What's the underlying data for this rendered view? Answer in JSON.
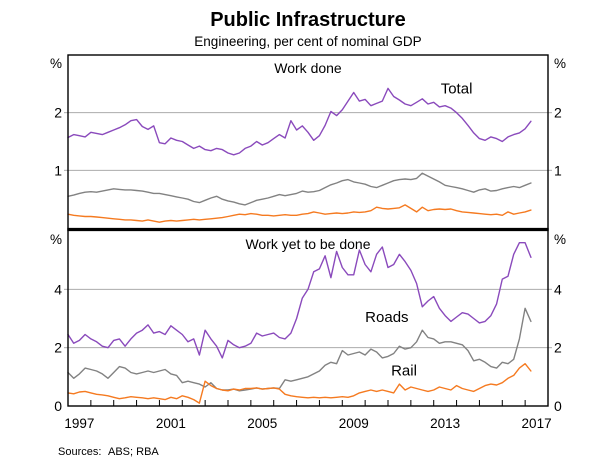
{
  "header": {
    "title": "Public Infrastructure",
    "subtitle": "Engineering, per cent of nominal GDP"
  },
  "footer": {
    "sources_label": "Sources:",
    "sources_value": "ABS; RBA"
  },
  "colors": {
    "total": "#8a4abc",
    "roads": "#828282",
    "rail": "#f57a20",
    "gridline": "#ababab",
    "axis": "#000000",
    "background": "#ffffff"
  },
  "chart_data": {
    "type": "line",
    "title": "Public Infrastructure",
    "subtitle": "Engineering, per cent of nominal GDP",
    "grid": true,
    "legend_position": "inline-annotations",
    "x": {
      "axis_range": [
        1997,
        2018
      ],
      "data_start": 1997.0,
      "data_step_years": 0.25,
      "tick_interval_years": 1,
      "tick_labels": [
        "1997",
        "2001",
        "2005",
        "2009",
        "2013",
        "2017"
      ],
      "tick_label_years": [
        1997,
        2001,
        2005,
        2009,
        2013,
        2017
      ]
    },
    "panels": [
      {
        "label": "Work done",
        "unit_left": "%",
        "unit_right": "%",
        "ylim": [
          0,
          3
        ],
        "gridlines": [
          1,
          2
        ],
        "ytick_labels": [
          {
            "value": 1,
            "text": "1"
          },
          {
            "value": 2,
            "text": "2"
          }
        ],
        "series": [
          {
            "name": "Total",
            "color": "#8a4abc",
            "values": [
              1.57,
              1.62,
              1.6,
              1.58,
              1.66,
              1.64,
              1.62,
              1.66,
              1.7,
              1.74,
              1.79,
              1.86,
              1.88,
              1.76,
              1.71,
              1.77,
              1.48,
              1.46,
              1.56,
              1.52,
              1.5,
              1.44,
              1.38,
              1.42,
              1.36,
              1.34,
              1.38,
              1.36,
              1.3,
              1.27,
              1.3,
              1.38,
              1.42,
              1.5,
              1.44,
              1.48,
              1.55,
              1.62,
              1.56,
              1.86,
              1.7,
              1.77,
              1.66,
              1.52,
              1.6,
              1.78,
              2.02,
              1.95,
              2.05,
              2.2,
              2.35,
              2.2,
              2.23,
              2.12,
              2.16,
              2.2,
              2.42,
              2.28,
              2.22,
              2.15,
              2.12,
              2.18,
              2.24,
              2.15,
              2.18,
              2.1,
              2.12,
              2.08,
              2.0,
              1.9,
              1.78,
              1.65,
              1.55,
              1.52,
              1.58,
              1.55,
              1.5,
              1.58,
              1.62,
              1.65,
              1.72,
              1.85
            ]
          },
          {
            "name": "Roads",
            "color": "#828282",
            "values": [
              0.55,
              0.57,
              0.6,
              0.62,
              0.63,
              0.62,
              0.64,
              0.66,
              0.68,
              0.67,
              0.66,
              0.66,
              0.65,
              0.64,
              0.62,
              0.6,
              0.6,
              0.58,
              0.56,
              0.54,
              0.52,
              0.5,
              0.46,
              0.44,
              0.48,
              0.52,
              0.55,
              0.5,
              0.47,
              0.45,
              0.42,
              0.4,
              0.44,
              0.48,
              0.5,
              0.52,
              0.55,
              0.58,
              0.56,
              0.58,
              0.6,
              0.64,
              0.62,
              0.63,
              0.65,
              0.7,
              0.75,
              0.78,
              0.82,
              0.84,
              0.8,
              0.78,
              0.76,
              0.72,
              0.7,
              0.74,
              0.78,
              0.82,
              0.84,
              0.85,
              0.84,
              0.86,
              0.95,
              0.9,
              0.85,
              0.8,
              0.74,
              0.72,
              0.7,
              0.68,
              0.65,
              0.62,
              0.66,
              0.68,
              0.64,
              0.65,
              0.68,
              0.7,
              0.72,
              0.7,
              0.74,
              0.78
            ]
          },
          {
            "name": "Rail",
            "color": "#f57a20",
            "values": [
              0.24,
              0.22,
              0.21,
              0.2,
              0.2,
              0.19,
              0.18,
              0.17,
              0.16,
              0.15,
              0.14,
              0.14,
              0.13,
              0.12,
              0.14,
              0.12,
              0.1,
              0.12,
              0.13,
              0.12,
              0.13,
              0.14,
              0.15,
              0.14,
              0.15,
              0.16,
              0.17,
              0.18,
              0.2,
              0.22,
              0.24,
              0.23,
              0.25,
              0.24,
              0.22,
              0.22,
              0.21,
              0.22,
              0.23,
              0.22,
              0.22,
              0.24,
              0.25,
              0.28,
              0.26,
              0.24,
              0.25,
              0.26,
              0.25,
              0.26,
              0.28,
              0.27,
              0.28,
              0.3,
              0.36,
              0.34,
              0.33,
              0.34,
              0.35,
              0.4,
              0.34,
              0.28,
              0.36,
              0.3,
              0.32,
              0.33,
              0.32,
              0.33,
              0.3,
              0.28,
              0.27,
              0.26,
              0.25,
              0.24,
              0.23,
              0.24,
              0.22,
              0.28,
              0.24,
              0.26,
              0.28,
              0.31
            ]
          }
        ],
        "annotations": [
          {
            "text": "Total",
            "color": "#8a4abc",
            "x_year": 2014.0,
            "y_value": 2.42
          }
        ]
      },
      {
        "label": "Work yet to be done",
        "unit_left": "%",
        "unit_right": "%",
        "ylim": [
          0,
          6
        ],
        "gridlines": [
          2,
          4
        ],
        "ytick_labels": [
          {
            "value": 0,
            "text": "0"
          },
          {
            "value": 2,
            "text": "2"
          },
          {
            "value": 4,
            "text": "4"
          }
        ],
        "series": [
          {
            "name": "Total",
            "color": "#8a4abc",
            "values": [
              2.45,
              2.15,
              2.25,
              2.45,
              2.3,
              2.2,
              2.05,
              2.0,
              2.25,
              2.3,
              2.05,
              2.3,
              2.5,
              2.6,
              2.78,
              2.5,
              2.55,
              2.45,
              2.75,
              2.6,
              2.45,
              2.2,
              2.3,
              1.75,
              2.6,
              2.3,
              2.05,
              1.65,
              2.25,
              2.1,
              2.0,
              2.05,
              2.15,
              2.5,
              2.4,
              2.45,
              2.5,
              2.35,
              2.3,
              2.5,
              3.0,
              3.7,
              4.0,
              4.6,
              4.7,
              5.15,
              4.4,
              5.3,
              4.75,
              4.5,
              4.5,
              5.35,
              4.85,
              4.6,
              5.2,
              5.45,
              4.75,
              4.85,
              5.2,
              4.95,
              4.65,
              4.2,
              3.4,
              3.6,
              3.75,
              3.35,
              3.1,
              2.9,
              3.05,
              3.2,
              3.15,
              3.0,
              2.85,
              2.9,
              3.1,
              3.5,
              4.35,
              4.45,
              5.2,
              5.6,
              5.6,
              5.1
            ]
          },
          {
            "name": "Roads",
            "color": "#828282",
            "values": [
              1.15,
              0.95,
              1.1,
              1.3,
              1.25,
              1.2,
              1.1,
              0.95,
              1.15,
              1.35,
              1.3,
              1.15,
              1.1,
              1.15,
              1.2,
              1.15,
              1.2,
              1.25,
              1.1,
              1.05,
              0.8,
              0.85,
              0.8,
              0.75,
              0.65,
              0.8,
              0.6,
              0.55,
              0.55,
              0.58,
              0.52,
              0.55,
              0.58,
              0.62,
              0.58,
              0.6,
              0.62,
              0.6,
              0.9,
              0.85,
              0.9,
              0.95,
              1.0,
              1.1,
              1.2,
              1.4,
              1.5,
              1.45,
              1.9,
              1.75,
              1.8,
              1.85,
              1.75,
              1.95,
              1.85,
              1.65,
              1.7,
              1.8,
              2.05,
              1.95,
              2.0,
              2.2,
              2.6,
              2.35,
              2.3,
              2.15,
              2.2,
              2.2,
              2.15,
              2.1,
              1.9,
              1.55,
              1.6,
              1.5,
              1.35,
              1.3,
              1.5,
              1.45,
              1.6,
              2.3,
              3.35,
              2.9
            ]
          },
          {
            "name": "Rail",
            "color": "#f57a20",
            "values": [
              0.45,
              0.42,
              0.48,
              0.5,
              0.45,
              0.4,
              0.38,
              0.35,
              0.3,
              0.25,
              0.28,
              0.32,
              0.3,
              0.28,
              0.25,
              0.28,
              0.25,
              0.22,
              0.3,
              0.25,
              0.35,
              0.3,
              0.22,
              0.1,
              0.85,
              0.7,
              0.6,
              0.55,
              0.52,
              0.58,
              0.55,
              0.6,
              0.6,
              0.62,
              0.58,
              0.6,
              0.62,
              0.58,
              0.4,
              0.35,
              0.32,
              0.3,
              0.28,
              0.3,
              0.28,
              0.3,
              0.28,
              0.3,
              0.32,
              0.3,
              0.35,
              0.45,
              0.5,
              0.55,
              0.5,
              0.55,
              0.5,
              0.45,
              0.75,
              0.55,
              0.65,
              0.6,
              0.55,
              0.5,
              0.55,
              0.65,
              0.6,
              0.55,
              0.7,
              0.6,
              0.55,
              0.5,
              0.6,
              0.7,
              0.75,
              0.72,
              0.8,
              0.95,
              1.05,
              1.3,
              1.45,
              1.2
            ]
          }
        ],
        "annotations": [
          {
            "text": "Roads",
            "color": "#828282",
            "x_year": 2010.95,
            "y_value": 3.05
          },
          {
            "text": "Rail",
            "color": "#f57a20",
            "x_year": 2011.7,
            "y_value": 1.22
          }
        ]
      }
    ]
  }
}
